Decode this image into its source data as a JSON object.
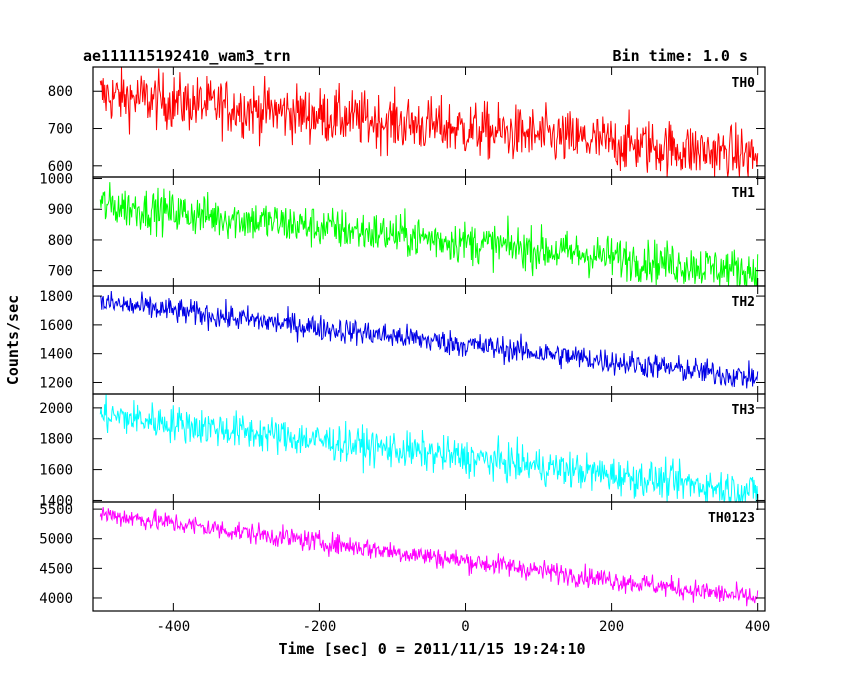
{
  "chart_data": {
    "type": "line",
    "title": "ae111115192410_wam3_trn",
    "bin_time": "Bin time: 1.0 s",
    "xlabel": "Time [sec] 0 = 2011/11/15 19:24:10",
    "ylabel": "Counts/sec",
    "xlim": [
      -510,
      410
    ],
    "x_ticks": [
      -400,
      -200,
      0,
      200,
      400
    ],
    "x_start": -500,
    "x_end": 400,
    "series": [
      {
        "name": "TH0",
        "color": "#ff0000",
        "ylim": [
          570,
          865
        ],
        "y_ticks": [
          600,
          700,
          800
        ],
        "start": 790,
        "end": 625,
        "noise": 38
      },
      {
        "name": "TH1",
        "color": "#00ff00",
        "ylim": [
          650,
          1005
        ],
        "y_ticks": [
          700,
          800,
          900,
          1000
        ],
        "start": 915,
        "end": 695,
        "noise": 35
      },
      {
        "name": "TH2",
        "color": "#0000e6",
        "ylim": [
          1120,
          1870
        ],
        "y_ticks": [
          1200,
          1400,
          1600,
          1800
        ],
        "start": 1755,
        "end": 1230,
        "noise": 45
      },
      {
        "name": "TH3",
        "color": "#00ffff",
        "ylim": [
          1390,
          2090
        ],
        "y_ticks": [
          1400,
          1600,
          1800,
          2000
        ],
        "start": 1955,
        "end": 1455,
        "noise": 60
      },
      {
        "name": "TH0123",
        "color": "#ff00ff",
        "ylim": [
          3780,
          5620
        ],
        "y_ticks": [
          4000,
          4500,
          5000,
          5500
        ],
        "start": 5420,
        "end": 3990,
        "noise": 90
      }
    ]
  }
}
